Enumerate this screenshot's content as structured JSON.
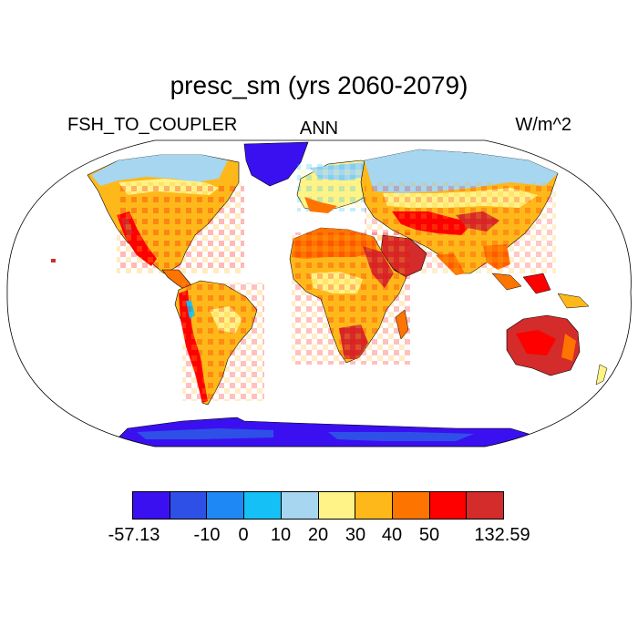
{
  "title": "presc_sm (yrs 2060-2079)",
  "left_string": "FSH_TO_COUPLER",
  "center_string": "ANN",
  "right_string": "W/m^2",
  "colorbar": {
    "colors": [
      "#3a10f0",
      "#2f50e6",
      "#1e88f5",
      "#14c0f5",
      "#a6d6f0",
      "#fff388",
      "#feb81a",
      "#fe7400",
      "#fe0000",
      "#d42b2b"
    ],
    "labels": [
      "-57.13",
      "-10",
      "0",
      "10",
      "20",
      "30",
      "40",
      "50",
      "132.59"
    ]
  },
  "map": {
    "projection": "Robinson",
    "ocean_color": "#ffffff",
    "land_regions": [
      {
        "name": "North America",
        "level": "warm-mixed"
      },
      {
        "name": "Greenland",
        "level": "low"
      },
      {
        "name": "South America",
        "level": "warm"
      },
      {
        "name": "Europe",
        "level": "cool-mixed"
      },
      {
        "name": "Africa",
        "level": "warm-hot"
      },
      {
        "name": "Asia",
        "level": "warm-mixed"
      },
      {
        "name": "Australia",
        "level": "hot"
      },
      {
        "name": "Antarctica",
        "level": "low"
      }
    ]
  }
}
